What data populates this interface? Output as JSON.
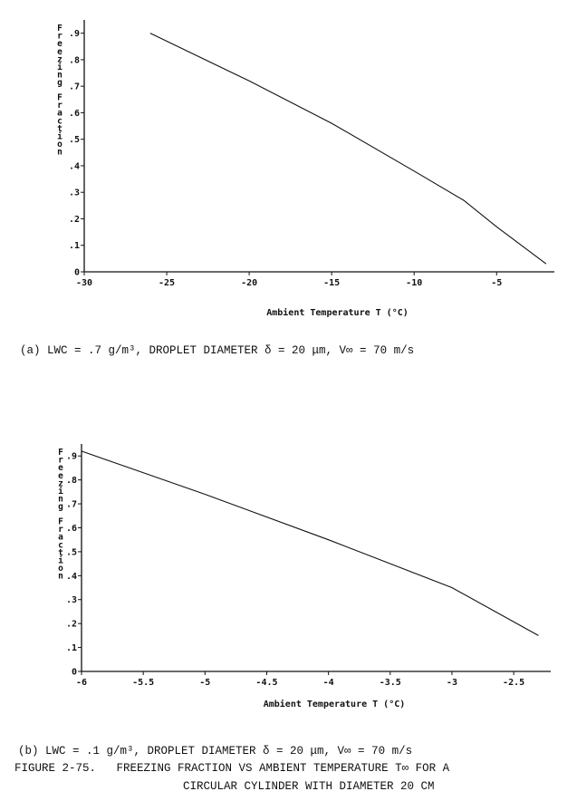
{
  "chart_data": [
    {
      "type": "line",
      "xlabel": "Ambient Temperature T (°C)",
      "ylabel": "Freezing Fraction",
      "xlim": [
        -30,
        -1.5
      ],
      "ylim": [
        0,
        0.95
      ],
      "x_ticks": [
        -30,
        -25,
        -20,
        -15,
        -10,
        -5
      ],
      "x_tick_labels": [
        "-30",
        "-25",
        "-20",
        "-15",
        "-10",
        "-5"
      ],
      "y_ticks": [
        0,
        0.1,
        0.2,
        0.3,
        0.4,
        0.5,
        0.6,
        0.7,
        0.8,
        0.9
      ],
      "y_tick_labels": [
        "0",
        ".1",
        ".2",
        ".3",
        ".4",
        ".5",
        ".6",
        ".7",
        ".8",
        ".9"
      ],
      "grid": false,
      "series": [
        {
          "x": [
            -26,
            -20,
            -15,
            -10,
            -7,
            -5,
            -2
          ],
          "y": [
            0.9,
            0.72,
            0.56,
            0.38,
            0.27,
            0.17,
            0.03
          ]
        }
      ],
      "caption": "(a) LWC = .7 g/m³, DROPLET DIAMETER δ = 20 μm, V∞ = 70 m/s"
    },
    {
      "type": "line",
      "xlabel": "Ambient Temperature T (°C)",
      "ylabel": "Freezing Fraction",
      "xlim": [
        -6,
        -2.2
      ],
      "ylim": [
        0,
        0.95
      ],
      "x_ticks": [
        -6,
        -5.5,
        -5,
        -4.5,
        -4,
        -3.5,
        -3,
        -2.5
      ],
      "x_tick_labels": [
        "-6",
        "-5.5",
        "-5",
        "-4.5",
        "-4",
        "-3.5",
        "-3",
        "-2.5"
      ],
      "y_ticks": [
        0,
        0.1,
        0.2,
        0.3,
        0.4,
        0.5,
        0.6,
        0.7,
        0.8,
        0.9
      ],
      "y_tick_labels": [
        "0",
        ".1",
        ".2",
        ".3",
        ".4",
        ".5",
        ".6",
        ".7",
        ".8",
        ".9"
      ],
      "grid": false,
      "series": [
        {
          "x": [
            -6,
            -5,
            -4,
            -3,
            -2.3
          ],
          "y": [
            0.92,
            0.74,
            0.55,
            0.35,
            0.15
          ]
        }
      ],
      "caption": "(b) LWC = .1 g/m³, DROPLET DIAMETER δ = 20 μm, V∞ = 70 m/s"
    }
  ],
  "figure_caption": {
    "line1": "FIGURE 2-75.   FREEZING FRACTION VS AMBIENT TEMPERATURE T∞ FOR A",
    "line2": "CIRCULAR CYLINDER WITH DIAMETER 20 CM"
  }
}
